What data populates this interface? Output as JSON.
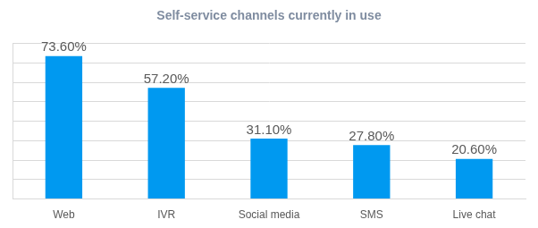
{
  "chart_data": {
    "type": "bar",
    "title": "Self-service channels currently in use",
    "categories": [
      "Web",
      "IVR",
      "Social media",
      "SMS",
      "Live chat"
    ],
    "values": [
      73.6,
      57.2,
      31.1,
      27.8,
      20.6
    ],
    "value_labels": [
      "73.60%",
      "57.20%",
      "31.10%",
      "27.80%",
      "20.60%"
    ],
    "color": "#0099f0",
    "ylim": [
      0,
      80
    ],
    "yticks": [
      0,
      10,
      20,
      30,
      40,
      50,
      60,
      70,
      80
    ],
    "grid": true,
    "data_labels": true,
    "tick_labels": "x"
  }
}
